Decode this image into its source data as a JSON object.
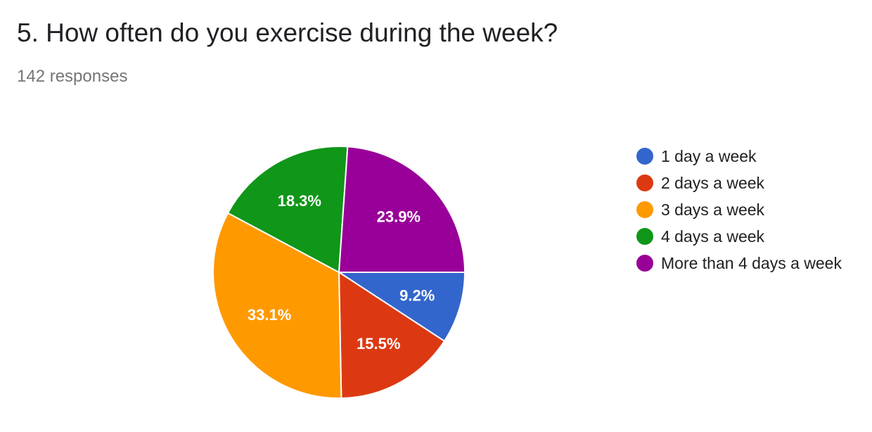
{
  "question": {
    "title": "5. How often do you exercise during the week?",
    "responses": "142 responses"
  },
  "chart_data": {
    "type": "pie",
    "title": "5. How often do you exercise during the week?",
    "categories": [
      "1 day a week",
      "2 days a week",
      "3 days a week",
      "4 days a week",
      "More than 4 days a week"
    ],
    "values": [
      9.2,
      15.5,
      33.1,
      18.3,
      23.9
    ],
    "labels": [
      "9.2%",
      "15.5%",
      "33.1%",
      "18.3%",
      "23.9%"
    ],
    "colors": [
      "#3366cc",
      "#dc3912",
      "#ff9900",
      "#109618",
      "#990099"
    ],
    "start": "3 o'clock",
    "direction": "clockwise",
    "legend_position": "right"
  }
}
